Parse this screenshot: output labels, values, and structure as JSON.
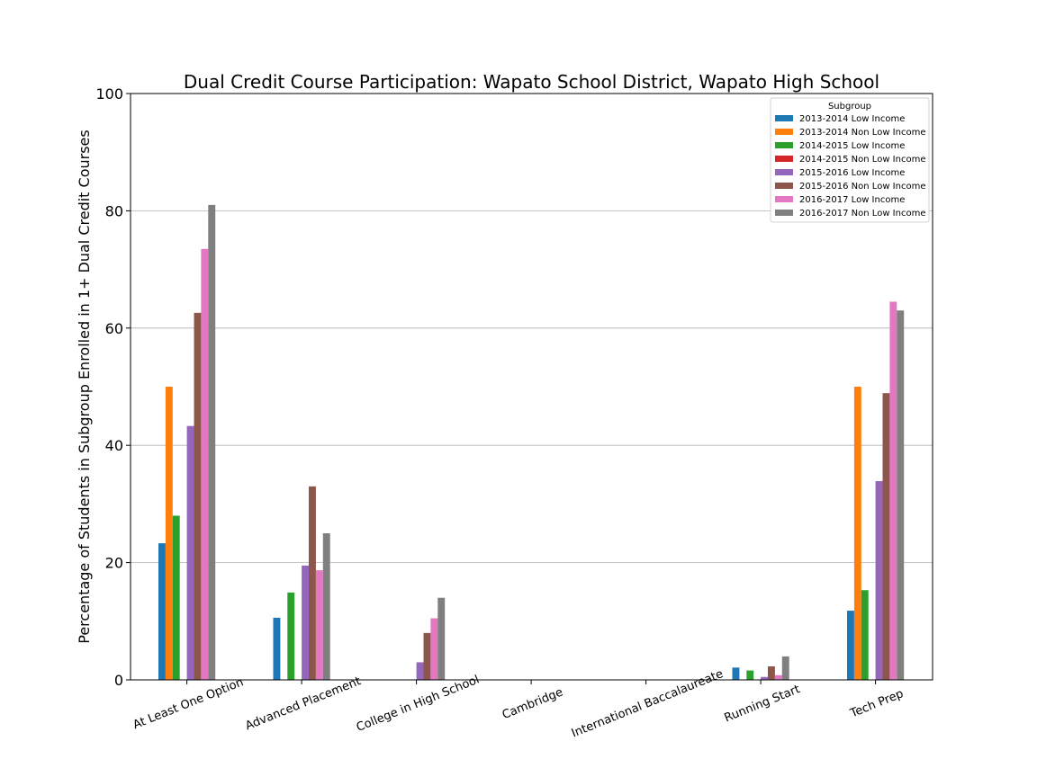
{
  "chart_data": {
    "type": "bar",
    "title": "Dual Credit Course Participation: Wapato School District, Wapato High School",
    "xlabel": "",
    "ylabel": "Percentage of Students in Subgroup Enrolled in 1+ Dual Credit Courses",
    "ylim": [
      0,
      100
    ],
    "yticks": [
      "0",
      "20",
      "40",
      "60",
      "80",
      "100"
    ],
    "grid": true,
    "legend_title": "Subgroup",
    "legend_placement": "top-right",
    "categories": [
      "At Least One Option",
      "Advanced Placement",
      "College in High School",
      "Cambridge",
      "International Baccalaureate",
      "Running Start",
      "Tech Prep"
    ],
    "series": [
      {
        "name": "2013-2014 Low Income",
        "color": "#1f77b4",
        "values": [
          23.3,
          10.6,
          0,
          0,
          0,
          2.1,
          11.8
        ]
      },
      {
        "name": "2013-2014 Non Low Income",
        "color": "#ff7f0e",
        "values": [
          50.0,
          0,
          0,
          0,
          0,
          0,
          50.0
        ]
      },
      {
        "name": "2014-2015 Low Income",
        "color": "#2ca02c",
        "values": [
          28.0,
          14.9,
          0,
          0,
          0,
          1.6,
          15.3
        ]
      },
      {
        "name": "2014-2015 Non Low Income",
        "color": "#d62728",
        "values": [
          0,
          0,
          0,
          0,
          0,
          0,
          0
        ]
      },
      {
        "name": "2015-2016 Low Income",
        "color": "#9467bd",
        "values": [
          43.3,
          19.5,
          3.0,
          0,
          0,
          0.5,
          33.9
        ]
      },
      {
        "name": "2015-2016 Non Low Income",
        "color": "#8c564b",
        "values": [
          62.6,
          33.0,
          8.0,
          0,
          0,
          2.3,
          48.9
        ]
      },
      {
        "name": "2016-2017 Low Income",
        "color": "#e377c2",
        "values": [
          73.5,
          18.7,
          10.5,
          0,
          0,
          0.8,
          64.5
        ]
      },
      {
        "name": "2016-2017 Non Low Income",
        "color": "#7f7f7f",
        "values": [
          81.0,
          25.0,
          14.0,
          0,
          0,
          4.0,
          63.0
        ]
      }
    ]
  }
}
